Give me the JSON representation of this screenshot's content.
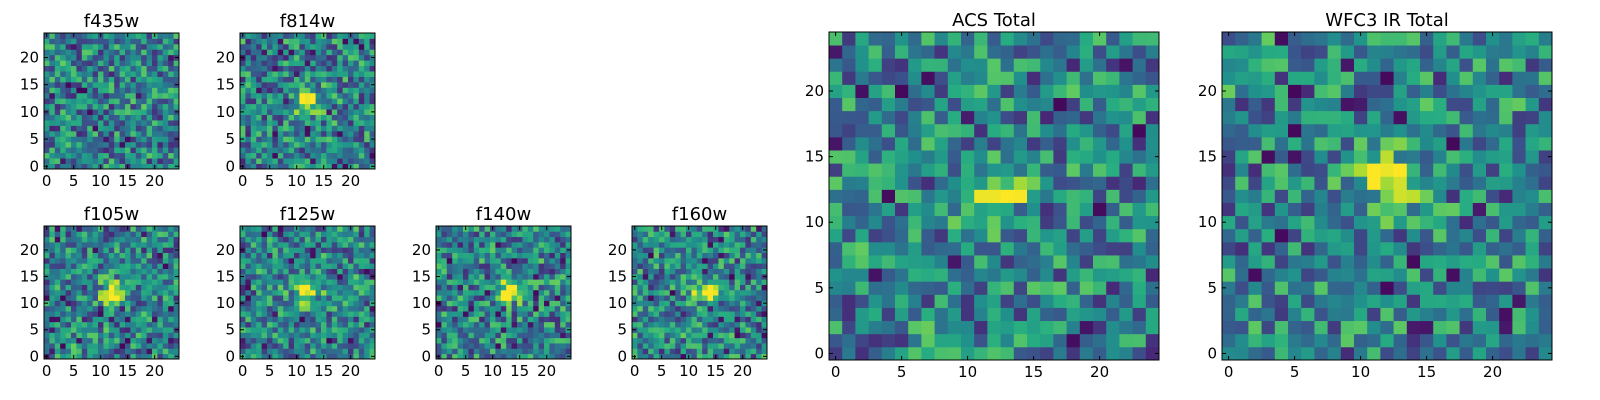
{
  "colors": {
    "colormap": "viridis",
    "background": "#ffffff",
    "axes_edge": "#000000"
  },
  "chart_data": [
    {
      "type": "heatmap",
      "title": "f435w",
      "grid_size": 25,
      "xlim": [
        -0.5,
        24.5
      ],
      "ylim": [
        -0.5,
        24.5
      ],
      "xticks": [
        0,
        5,
        10,
        15,
        20
      ],
      "yticks": [
        0,
        5,
        10,
        15,
        20
      ],
      "source_center": null,
      "seed": 11
    },
    {
      "type": "heatmap",
      "title": "f814w",
      "grid_size": 25,
      "xlim": [
        -0.5,
        24.5
      ],
      "ylim": [
        -0.5,
        24.5
      ],
      "xticks": [
        0,
        5,
        10,
        15,
        20
      ],
      "yticks": [
        0,
        5,
        10,
        15,
        20
      ],
      "source_center": [
        12,
        12
      ],
      "seed": 23
    },
    {
      "type": "heatmap",
      "title": "f105w",
      "grid_size": 25,
      "xlim": [
        -0.5,
        24.5
      ],
      "ylim": [
        -0.5,
        24.5
      ],
      "xticks": [
        0,
        5,
        10,
        15,
        20
      ],
      "yticks": [
        0,
        5,
        10,
        15,
        20
      ],
      "source_center": [
        12,
        12
      ],
      "seed": 37
    },
    {
      "type": "heatmap",
      "title": "f125w",
      "grid_size": 25,
      "xlim": [
        -0.5,
        24.5
      ],
      "ylim": [
        -0.5,
        24.5
      ],
      "xticks": [
        0,
        5,
        10,
        15,
        20
      ],
      "yticks": [
        0,
        5,
        10,
        15,
        20
      ],
      "source_center": [
        12,
        12
      ],
      "seed": 41
    },
    {
      "type": "heatmap",
      "title": "f140w",
      "grid_size": 25,
      "xlim": [
        -0.5,
        24.5
      ],
      "ylim": [
        -0.5,
        24.5
      ],
      "xticks": [
        0,
        5,
        10,
        15,
        20
      ],
      "yticks": [
        0,
        5,
        10,
        15,
        20
      ],
      "source_center": [
        13,
        12
      ],
      "seed": 53
    },
    {
      "type": "heatmap",
      "title": "f160w",
      "grid_size": 25,
      "xlim": [
        -0.5,
        24.5
      ],
      "ylim": [
        -0.5,
        24.5
      ],
      "xticks": [
        0,
        5,
        10,
        15,
        20
      ],
      "yticks": [
        0,
        5,
        10,
        15,
        20
      ],
      "source_center": [
        13,
        12
      ],
      "seed": 67
    },
    {
      "type": "heatmap",
      "title": "ACS Total",
      "grid_size": 25,
      "xlim": [
        -0.5,
        24.5
      ],
      "ylim": [
        -0.5,
        24.5
      ],
      "xticks": [
        0,
        5,
        10,
        15,
        20
      ],
      "yticks": [
        0,
        5,
        10,
        15,
        20
      ],
      "source_center": [
        12,
        12
      ],
      "seed": 79
    },
    {
      "type": "heatmap",
      "title": "WFC3 IR Total",
      "grid_size": 25,
      "xlim": [
        -0.5,
        24.5
      ],
      "ylim": [
        -0.5,
        24.5
      ],
      "xticks": [
        0,
        5,
        10,
        15,
        20
      ],
      "yticks": [
        0,
        5,
        10,
        15,
        20
      ],
      "source_center": [
        12,
        13
      ],
      "seed": 97
    }
  ]
}
